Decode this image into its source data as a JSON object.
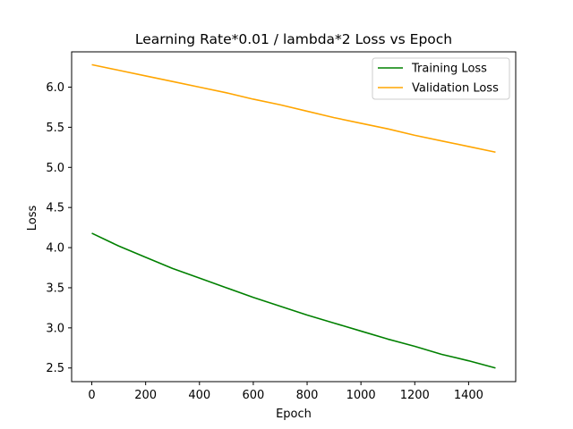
{
  "chart_data": {
    "type": "line",
    "title": "Learning Rate*0.01 / lambda*2 Loss vs Epoch",
    "xlabel": "Epoch",
    "ylabel": "Loss",
    "xlim": [
      -75,
      1575
    ],
    "ylim": [
      2.33,
      6.44
    ],
    "xticks": [
      0,
      200,
      400,
      600,
      800,
      1000,
      1200,
      1400
    ],
    "xtick_labels": [
      "0",
      "200",
      "400",
      "600",
      "800",
      "1000",
      "1200",
      "1400"
    ],
    "yticks": [
      2.5,
      3.0,
      3.5,
      4.0,
      4.5,
      5.0,
      5.5,
      6.0
    ],
    "ytick_labels": [
      "2.5",
      "3.0",
      "3.5",
      "4.0",
      "4.5",
      "5.0",
      "5.5",
      "6.0"
    ],
    "grid": false,
    "legend_position": "top-right",
    "x": [
      0,
      100,
      200,
      300,
      400,
      500,
      600,
      700,
      800,
      900,
      1000,
      1100,
      1200,
      1300,
      1400,
      1500
    ],
    "series": [
      {
        "name": "Training Loss",
        "color": "#008000",
        "values": [
          4.18,
          4.02,
          3.88,
          3.74,
          3.62,
          3.5,
          3.38,
          3.27,
          3.16,
          3.06,
          2.96,
          2.86,
          2.77,
          2.67,
          2.59,
          2.5
        ]
      },
      {
        "name": "Validation Loss",
        "color": "#ffa500",
        "values": [
          6.28,
          6.21,
          6.14,
          6.07,
          6.0,
          5.93,
          5.85,
          5.78,
          5.7,
          5.62,
          5.55,
          5.48,
          5.4,
          5.33,
          5.26,
          5.19
        ]
      }
    ]
  }
}
